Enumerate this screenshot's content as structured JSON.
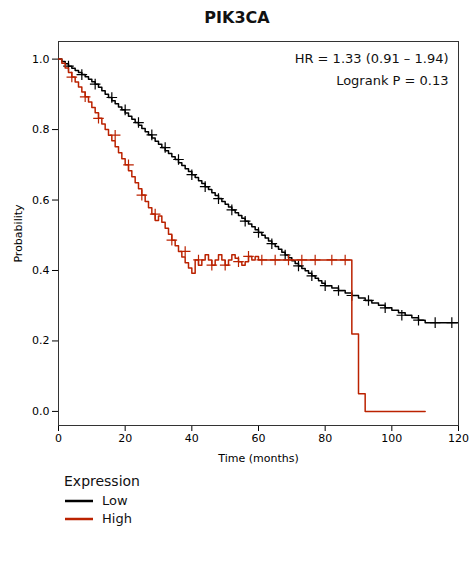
{
  "chart_data": {
    "type": "step",
    "title": "PIK3CA",
    "x_label": "Time (months)",
    "y_label": "Probability",
    "annotations": [
      "HR = 1.33 (0.91 – 1.94)",
      "Logrank P = 0.13"
    ],
    "legend_title": "Expression",
    "legend": "bottom",
    "grid": false,
    "xlim": [
      0,
      120
    ],
    "xticks": [
      0,
      20,
      40,
      60,
      80,
      100,
      120
    ],
    "ylim": [
      -0.04,
      1.05
    ],
    "yticks": [
      {
        "value": 0,
        "label": "0.0"
      },
      0.2,
      0.4,
      0.6,
      0.8,
      {
        "value": 1,
        "label": "1.0"
      }
    ],
    "series": [
      {
        "name": "Low",
        "color": "#000000",
        "marker": "+",
        "x": [
          0,
          1,
          2,
          3,
          4,
          5,
          6,
          7,
          8,
          9,
          10,
          11,
          12,
          13,
          14,
          15,
          16,
          17,
          18,
          19,
          20,
          21,
          22,
          23,
          24,
          25,
          26,
          27,
          28,
          29,
          30,
          31,
          32,
          33,
          34,
          35,
          36,
          37,
          38,
          39,
          40,
          41,
          42,
          43,
          44,
          45,
          46,
          47,
          48,
          49,
          50,
          51,
          52,
          53,
          54,
          55,
          56,
          57,
          58,
          59,
          60,
          61,
          62,
          63,
          64,
          65,
          66,
          67,
          68,
          69,
          70,
          71,
          72,
          73,
          74,
          75,
          76,
          77,
          78,
          79,
          80,
          82,
          84,
          86,
          88,
          90,
          92,
          94,
          96,
          98,
          100,
          102,
          104,
          106,
          108,
          110,
          112,
          114,
          116,
          118,
          120
        ],
        "values": [
          1.0,
          0.993,
          0.987,
          0.98,
          0.974,
          0.968,
          0.962,
          0.956,
          0.95,
          0.943,
          0.936,
          0.929,
          0.92,
          0.91,
          0.9,
          0.891,
          0.882,
          0.873,
          0.864,
          0.856,
          0.847,
          0.838,
          0.829,
          0.82,
          0.812,
          0.803,
          0.794,
          0.785,
          0.776,
          0.767,
          0.758,
          0.749,
          0.74,
          0.732,
          0.723,
          0.715,
          0.706,
          0.698,
          0.689,
          0.681,
          0.672,
          0.664,
          0.655,
          0.647,
          0.638,
          0.63,
          0.621,
          0.613,
          0.604,
          0.596,
          0.588,
          0.58,
          0.572,
          0.564,
          0.556,
          0.548,
          0.54,
          0.532,
          0.524,
          0.516,
          0.508,
          0.5,
          0.492,
          0.484,
          0.476,
          0.468,
          0.46,
          0.452,
          0.444,
          0.436,
          0.428,
          0.42,
          0.413,
          0.406,
          0.399,
          0.392,
          0.385,
          0.378,
          0.371,
          0.364,
          0.357,
          0.35,
          0.343,
          0.336,
          0.329,
          0.322,
          0.315,
          0.308,
          0.301,
          0.294,
          0.287,
          0.28,
          0.273,
          0.266,
          0.259,
          0.252,
          0.252,
          0.252,
          0.252,
          0.252,
          0.252
        ],
        "censor_x": [
          3,
          7,
          11,
          16,
          20,
          24,
          28,
          32,
          36,
          40,
          44,
          48,
          52,
          56,
          60,
          64,
          68,
          72,
          76,
          80,
          84,
          88,
          93,
          98,
          103,
          108,
          113,
          118
        ],
        "censor_values": [
          0.98,
          0.956,
          0.929,
          0.891,
          0.856,
          0.82,
          0.785,
          0.749,
          0.715,
          0.672,
          0.638,
          0.604,
          0.572,
          0.54,
          0.508,
          0.476,
          0.444,
          0.413,
          0.385,
          0.357,
          0.343,
          0.329,
          0.315,
          0.294,
          0.273,
          0.259,
          0.252,
          0.252
        ]
      },
      {
        "name": "High",
        "color": "#bb2200",
        "marker": "+",
        "x": [
          0,
          1,
          2,
          3,
          4,
          5,
          6,
          7,
          8,
          9,
          10,
          11,
          12,
          13,
          14,
          15,
          16,
          17,
          18,
          19,
          20,
          21,
          22,
          23,
          24,
          25,
          26,
          27,
          28,
          29,
          30,
          31,
          32,
          33,
          34,
          35,
          36,
          37,
          38,
          39,
          40,
          41,
          42,
          43,
          44,
          45,
          46,
          47,
          48,
          49,
          50,
          51,
          52,
          53,
          54,
          55,
          56,
          57,
          58,
          59,
          60,
          62,
          64,
          66,
          68,
          70,
          72,
          74,
          76,
          78,
          80,
          82,
          84,
          86,
          88,
          90,
          92,
          105,
          110
        ],
        "values": [
          1.0,
          0.988,
          0.975,
          0.962,
          0.949,
          0.935,
          0.921,
          0.907,
          0.893,
          0.878,
          0.863,
          0.848,
          0.832,
          0.816,
          0.8,
          0.784,
          0.768,
          0.751,
          0.734,
          0.717,
          0.7,
          0.683,
          0.666,
          0.649,
          0.632,
          0.614,
          0.596,
          0.578,
          0.56,
          0.542,
          0.555,
          0.537,
          0.52,
          0.503,
          0.486,
          0.47,
          0.454,
          0.438,
          0.422,
          0.407,
          0.392,
          0.43,
          0.415,
          0.43,
          0.445,
          0.43,
          0.415,
          0.43,
          0.445,
          0.43,
          0.415,
          0.43,
          0.445,
          0.435,
          0.425,
          0.415,
          0.425,
          0.44,
          0.43,
          0.44,
          0.43,
          0.43,
          0.43,
          0.43,
          0.43,
          0.43,
          0.43,
          0.43,
          0.43,
          0.43,
          0.43,
          0.43,
          0.43,
          0.43,
          0.22,
          0.05,
          0.0,
          0.0,
          0.0
        ],
        "censor_x": [
          4,
          8,
          12,
          17,
          21,
          25,
          29,
          34,
          38,
          42,
          46,
          50,
          54,
          57,
          61,
          65,
          69,
          73,
          77,
          82,
          86
        ],
        "censor_values": [
          0.949,
          0.893,
          0.832,
          0.784,
          0.7,
          0.614,
          0.56,
          0.486,
          0.454,
          0.43,
          0.415,
          0.415,
          0.425,
          0.44,
          0.43,
          0.43,
          0.43,
          0.43,
          0.43,
          0.43,
          0.43
        ]
      }
    ]
  }
}
